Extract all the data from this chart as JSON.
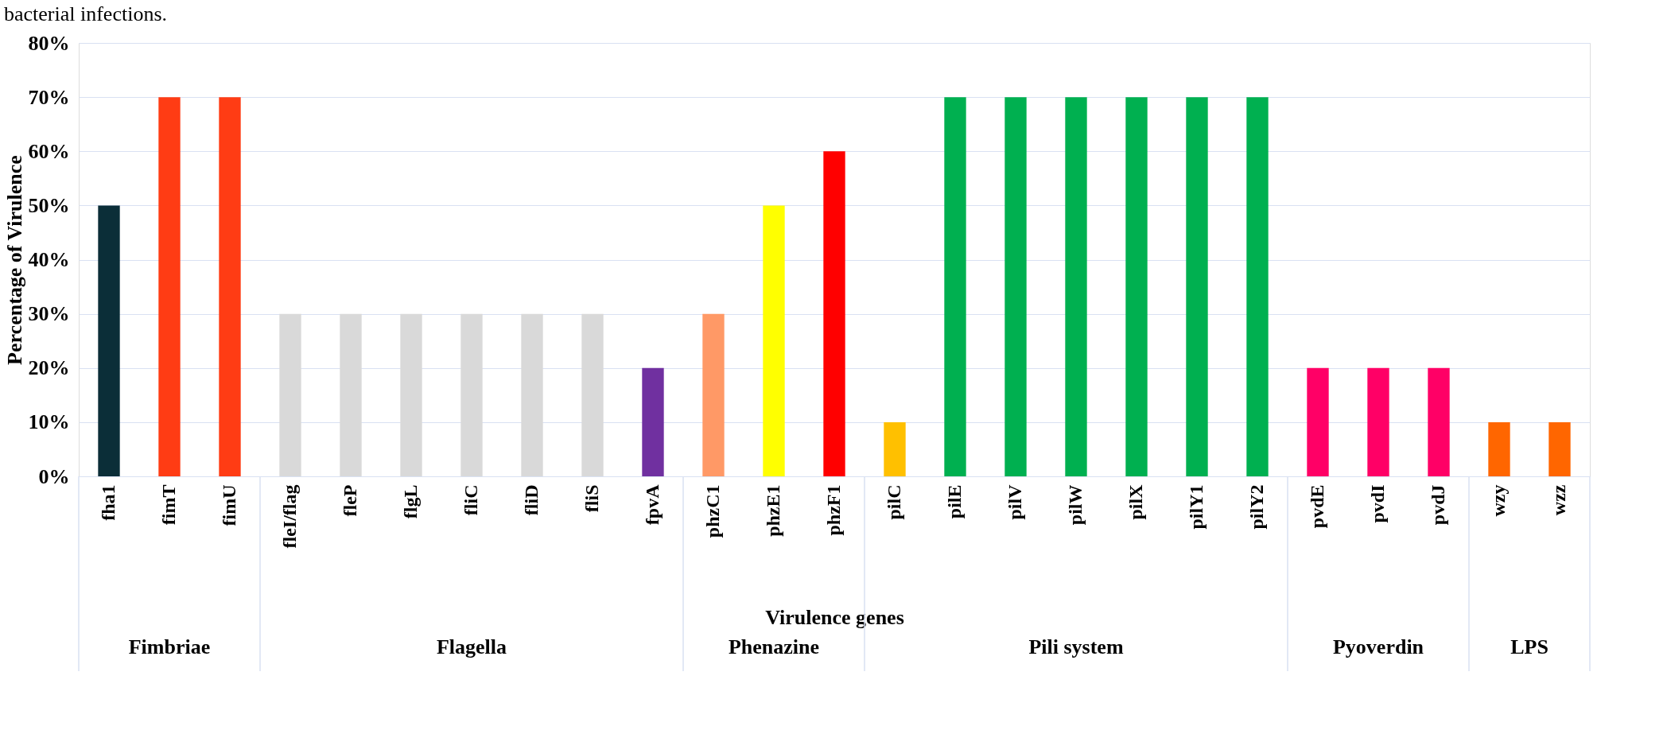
{
  "chart_data": {
    "type": "bar",
    "title": "bacterial infections.",
    "xlabel": "Virulence genes",
    "ylabel": "Percentage of Virulence",
    "categories": [
      "fha1",
      "fimT",
      "fimU",
      "fleI/flag",
      "fleP",
      "flgL",
      "fliC",
      "fliD",
      "fliS",
      "fpvA",
      "phzC1",
      "phzE1",
      "phzF1",
      "pilC",
      "pilE",
      "pilV",
      "pilW",
      "pilX",
      "pilY1",
      "pilY2",
      "pvdE",
      "pvdI",
      "pvdJ",
      "wzy",
      "wzz"
    ],
    "values": [
      50,
      70,
      70,
      30,
      30,
      30,
      30,
      30,
      30,
      20,
      30,
      50,
      60,
      10,
      70,
      70,
      70,
      70,
      70,
      70,
      20,
      20,
      20,
      10,
      10
    ],
    "colors": [
      "#0b2e38",
      "#ff3c14",
      "#ff3c14",
      "#d9d9d9",
      "#d9d9d9",
      "#d9d9d9",
      "#d9d9d9",
      "#d9d9d9",
      "#d9d9d9",
      "#7030a0",
      "#ff9966",
      "#ffff00",
      "#ff0000",
      "#ffc000",
      "#00b050",
      "#00b050",
      "#00b050",
      "#00b050",
      "#00b050",
      "#00b050",
      "#ff0066",
      "#ff0066",
      "#ff0066",
      "#ff6600",
      "#ff6600"
    ],
    "ylim": [
      0,
      80
    ],
    "yticks": [
      {
        "value": 0,
        "label": "0%"
      },
      {
        "value": 10,
        "label": "10%"
      },
      {
        "value": 20,
        "label": "20%"
      },
      {
        "value": 30,
        "label": "30%"
      },
      {
        "value": 40,
        "label": "40%"
      },
      {
        "value": 50,
        "label": "50%"
      },
      {
        "value": 60,
        "label": "60%"
      },
      {
        "value": 70,
        "label": "70%"
      },
      {
        "value": 80,
        "label": "80%"
      }
    ],
    "grid": "y",
    "annotations": [
      "Fimbriae",
      "Flagella",
      "Phenazine",
      "Pili system",
      "Pyoverdin",
      "LPS"
    ]
  }
}
